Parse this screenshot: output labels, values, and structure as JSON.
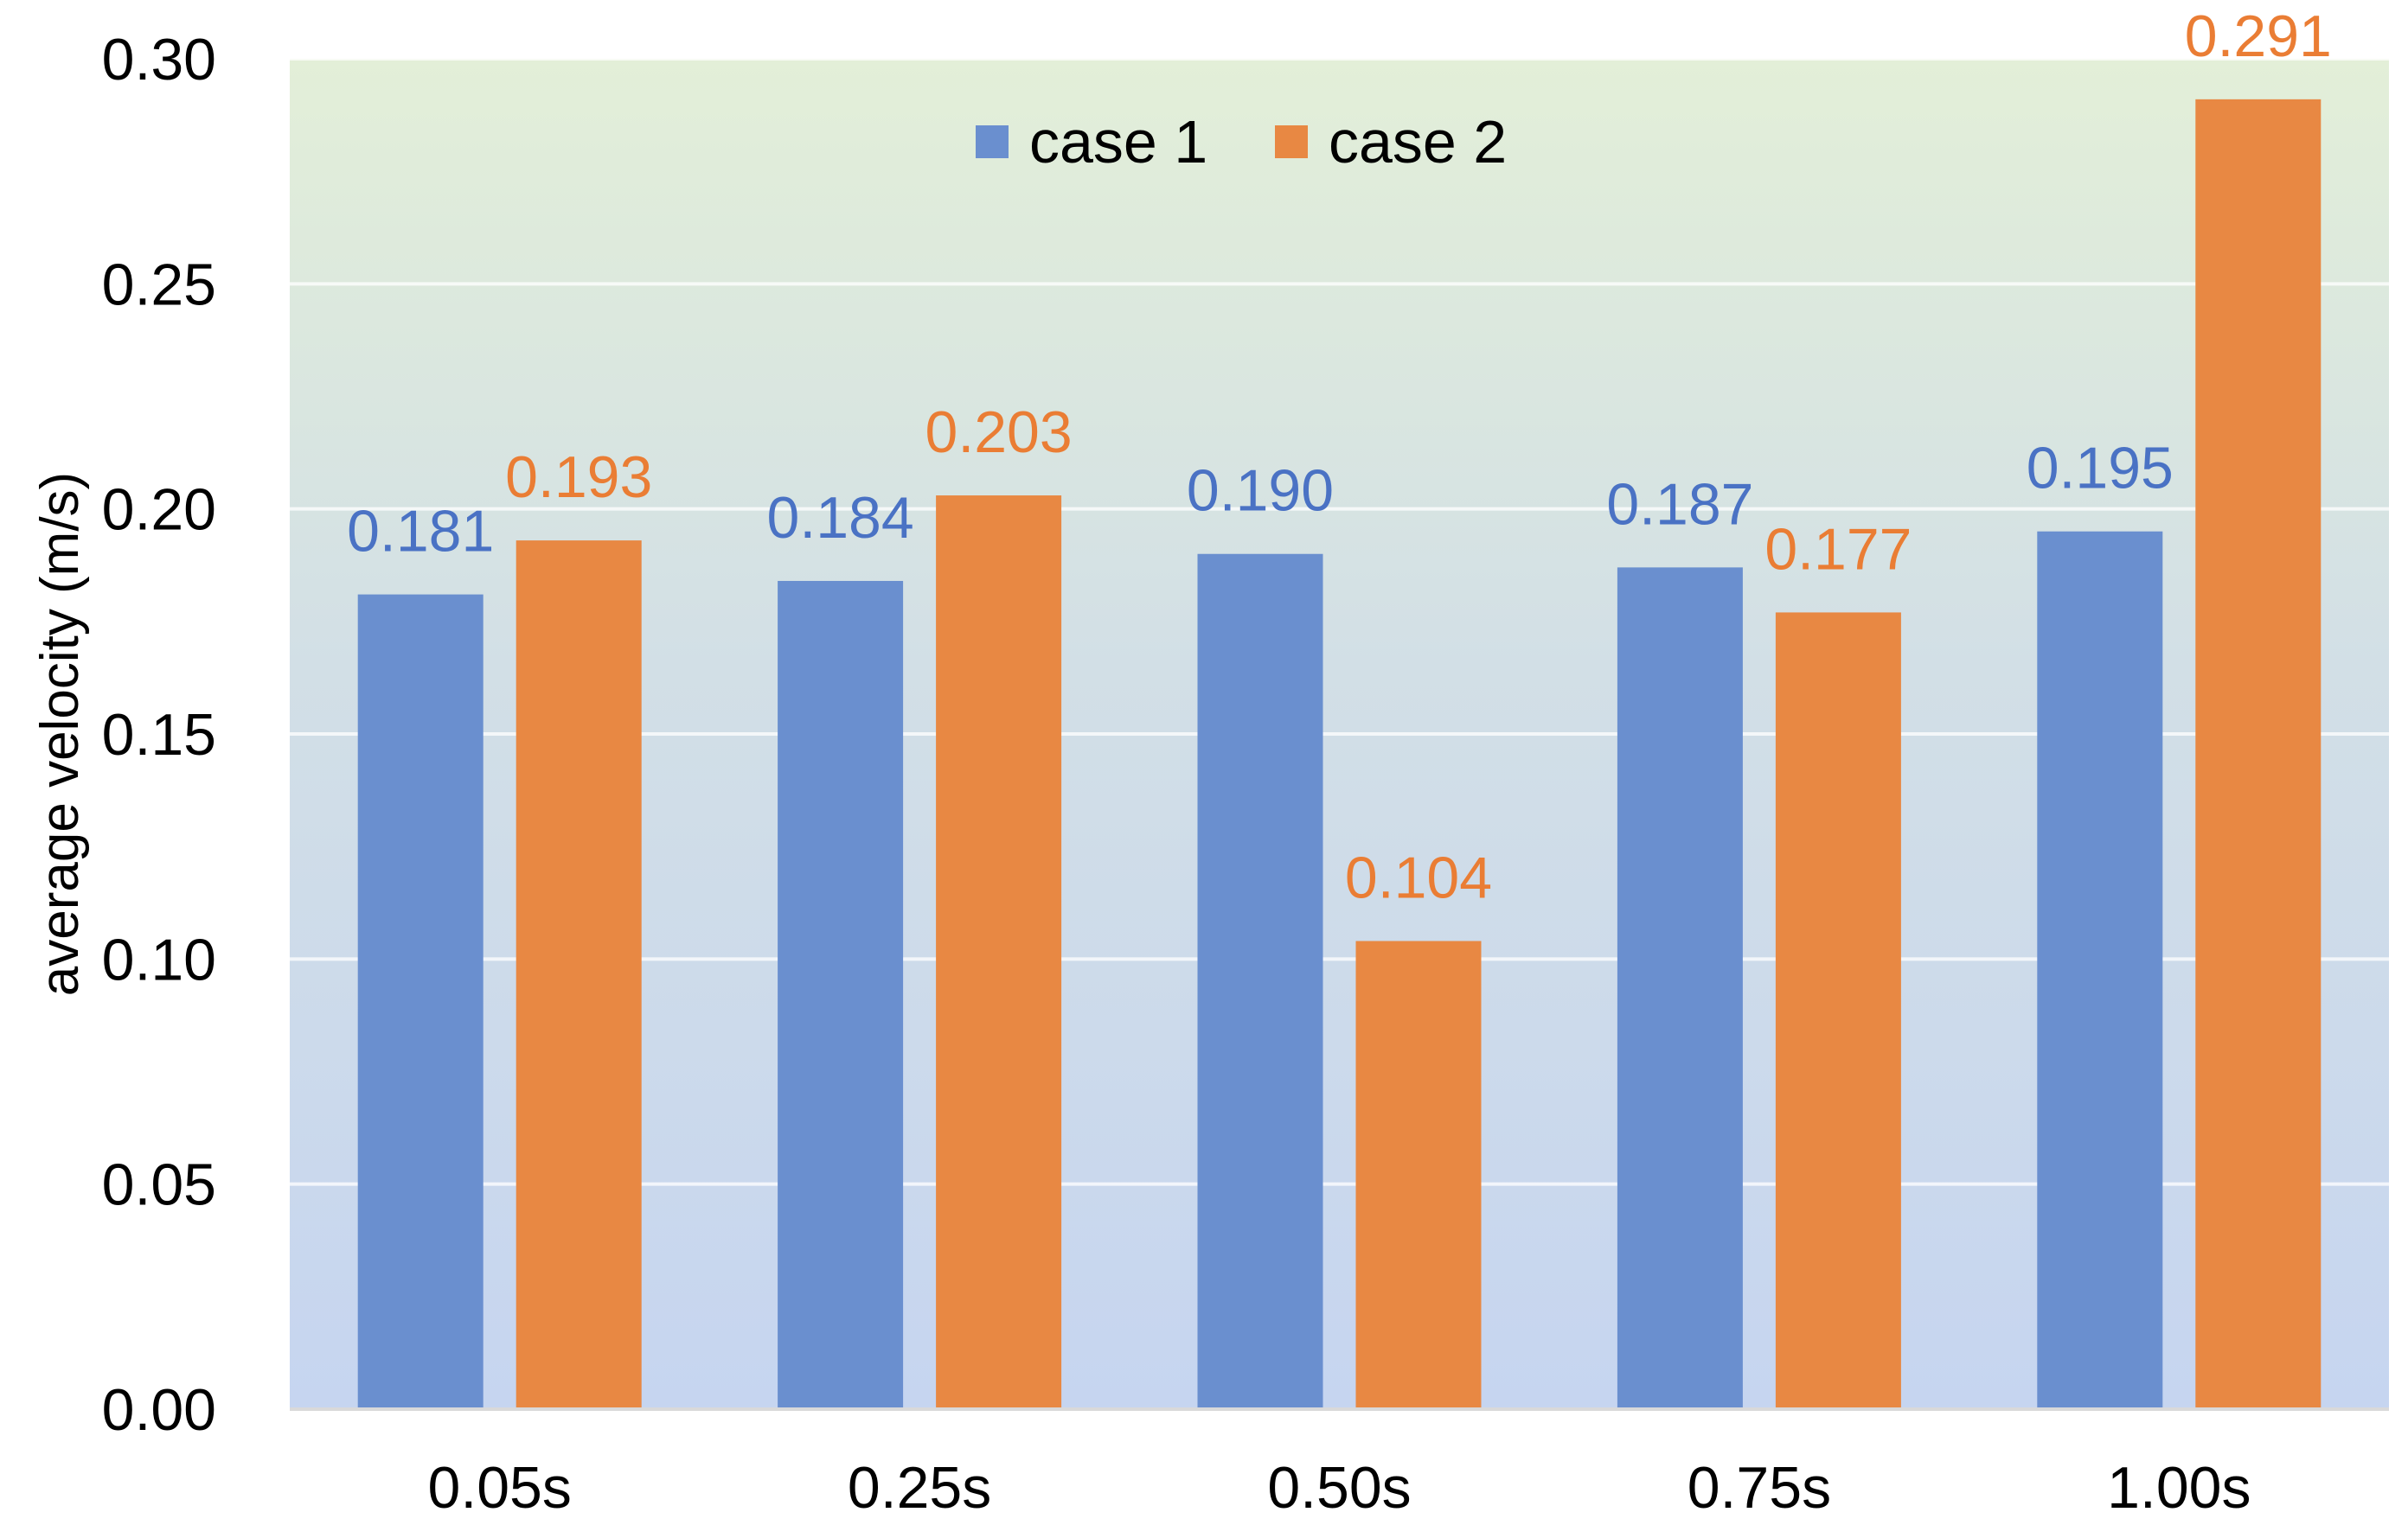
{
  "chart_data": {
    "type": "bar",
    "title": "",
    "xlabel": "",
    "ylabel": "average velocity (m/s)",
    "ylim": [
      0,
      0.3
    ],
    "yticks": [
      "0.00",
      "0.05",
      "0.10",
      "0.15",
      "0.20",
      "0.25",
      "0.30"
    ],
    "categories": [
      "0.05s",
      "0.25s",
      "0.50s",
      "0.75s",
      "1.00s"
    ],
    "grid": true,
    "legend_position": "top-center",
    "series": [
      {
        "name": "case 1",
        "color": "#6a8fcf",
        "label_color": "#4a72c4",
        "values": [
          0.181,
          0.184,
          0.19,
          0.187,
          0.195
        ],
        "labels": [
          "0.181",
          "0.184",
          "0.190",
          "0.187",
          "0.195"
        ]
      },
      {
        "name": "case 2",
        "color": "#e88843",
        "label_color": "#ea7d34",
        "values": [
          0.193,
          0.203,
          0.104,
          0.177,
          0.291
        ],
        "labels": [
          "0.193",
          "0.203",
          "0.104",
          "0.177",
          "0.291"
        ]
      }
    ],
    "background_gradient": {
      "top": "#e3efd8",
      "bottom": "#c6d5f0"
    }
  }
}
